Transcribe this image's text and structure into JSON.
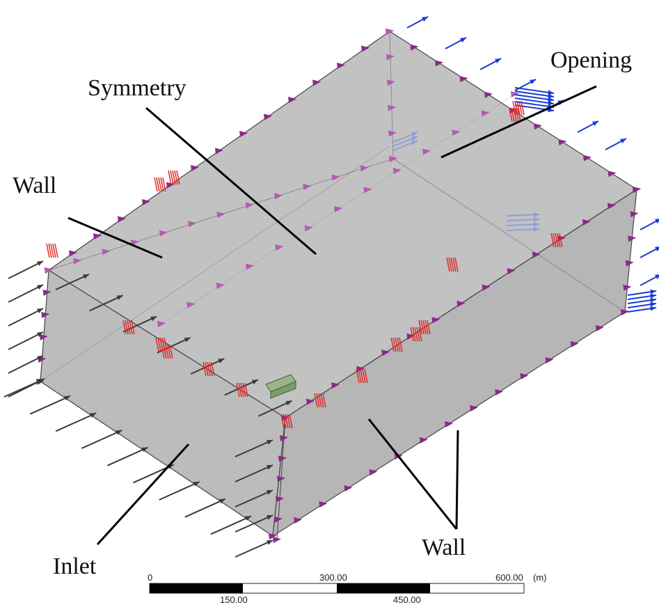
{
  "labels": {
    "symmetry": "Symmetry",
    "opening": "Opening",
    "wall_left": "Wall",
    "inlet": "Inlet",
    "wall_bottom": "Wall"
  },
  "scale_bar": {
    "top_ticks": [
      "0",
      "300.00",
      "600.00"
    ],
    "unit": "(m)",
    "bottom_ticks": [
      "150.00",
      "450.00"
    ]
  },
  "colors": {
    "domain_face": "#b9b9b9",
    "inlet_arrow": "#3a3a3a",
    "wall_marker": "#8a2a8a",
    "symmetry_marker": "#b55ab5",
    "opening_arrow": "#1a3ad6",
    "wall_hatch": "#e02a2a",
    "object": "#8ea87a"
  }
}
